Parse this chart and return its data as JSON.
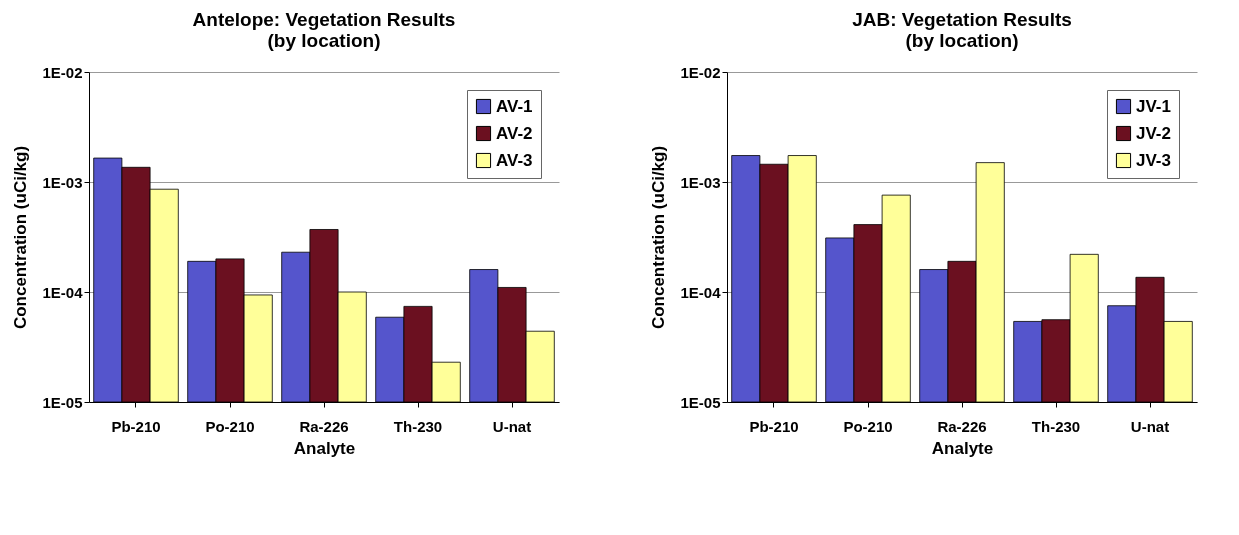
{
  "chart_data": [
    {
      "type": "bar",
      "title": "Antelope: Vegetation Results\n(by location)",
      "xlabel": "Analyte",
      "ylabel": "Concentration (uCi/kg)",
      "log": true,
      "grid": "y",
      "legend": "top right",
      "categories": [
        "Pb-210",
        "Po-210",
        "Ra-226",
        "Th-230",
        "U-nat"
      ],
      "ylim": [
        1e-05,
        0.01
      ],
      "yticks": [
        {
          "value": 1e-05,
          "label": "1E-05"
        },
        {
          "value": 0.0001,
          "label": "1E-04"
        },
        {
          "value": 0.001,
          "label": "1E-03"
        },
        {
          "value": 0.01,
          "label": "1E-02"
        }
      ],
      "series": [
        {
          "name": "AV-1",
          "color": "#5555cc",
          "values": [
            0.00165,
            0.00019,
            0.00023,
            5.9e-05,
            0.00016
          ]
        },
        {
          "name": "AV-2",
          "color": "#6b1020",
          "values": [
            0.00136,
            0.0002,
            0.00037,
            7.4e-05,
            0.00011
          ]
        },
        {
          "name": "AV-3",
          "color": "#ffff99",
          "values": [
            0.00086,
            9.4e-05,
            0.0001,
            2.3e-05,
            4.4e-05
          ]
        }
      ]
    },
    {
      "type": "bar",
      "title": "JAB: Vegetation Results\n(by location)",
      "xlabel": "Analyte",
      "ylabel": "Concentration (uCi/kg)",
      "log": true,
      "grid": "y",
      "legend": "top right",
      "categories": [
        "Pb-210",
        "Po-210",
        "Ra-226",
        "Th-230",
        "U-nat"
      ],
      "ylim": [
        1e-05,
        0.01
      ],
      "yticks": [
        {
          "value": 1e-05,
          "label": "1E-05"
        },
        {
          "value": 0.0001,
          "label": "1E-04"
        },
        {
          "value": 0.001,
          "label": "1E-03"
        },
        {
          "value": 0.01,
          "label": "1E-02"
        }
      ],
      "series": [
        {
          "name": "JV-1",
          "color": "#5555cc",
          "values": [
            0.00174,
            0.00031,
            0.00016,
            5.4e-05,
            7.5e-05
          ]
        },
        {
          "name": "JV-2",
          "color": "#6b1020",
          "values": [
            0.00145,
            0.00041,
            0.00019,
            5.6e-05,
            0.000136
          ]
        },
        {
          "name": "JV-3",
          "color": "#ffff99",
          "values": [
            0.00174,
            0.00076,
            0.0015,
            0.00022,
            5.4e-05
          ]
        }
      ]
    }
  ]
}
